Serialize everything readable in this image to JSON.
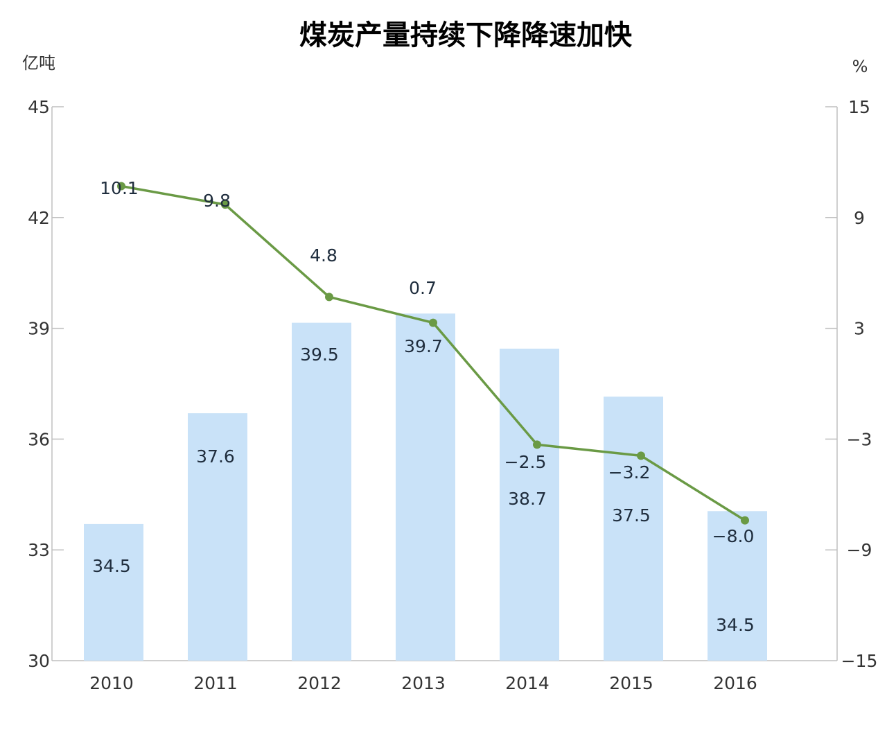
{
  "chart_data": {
    "type": "bar",
    "title": "煤炭产量持续下降降速加快",
    "categories": [
      "2010",
      "2011",
      "2012",
      "2013",
      "2014",
      "2015",
      "2016"
    ],
    "y_left": {
      "unit": "亿吨",
      "min": 30,
      "max": 45,
      "ticks": [
        "30",
        "33",
        "36",
        "39",
        "42",
        "45"
      ]
    },
    "y_right": {
      "unit": "%",
      "min": -15,
      "max": 15,
      "ticks": [
        "−15",
        "−9",
        "−3",
        "3",
        "9",
        "15"
      ]
    },
    "series": [
      {
        "type": "bar",
        "axis": "left",
        "color": "#c9e2f8",
        "values": [
          34.5,
          37.6,
          39.5,
          39.7,
          38.7,
          37.5,
          34.5
        ],
        "bar_tops": [
          33.7,
          36.7,
          39.15,
          39.4,
          38.45,
          37.15,
          34.05
        ],
        "labels": [
          "34.5",
          "37.6",
          "39.5",
          "39.7",
          "38.7",
          "37.5",
          "34.5"
        ]
      },
      {
        "type": "line",
        "axis": "right",
        "color": "#6a9a45",
        "values": [
          10.1,
          9.8,
          4.8,
          0.7,
          -2.5,
          -3.2,
          -8.0
        ],
        "plotted": [
          10.7,
          9.7,
          4.7,
          3.3,
          -3.3,
          -3.9,
          -7.4
        ],
        "labels": [
          "10.1",
          "9.8",
          "4.8",
          "0.7",
          "−2.5",
          "−3.2",
          "−8.0"
        ]
      }
    ],
    "grid": false,
    "legend": "none"
  }
}
